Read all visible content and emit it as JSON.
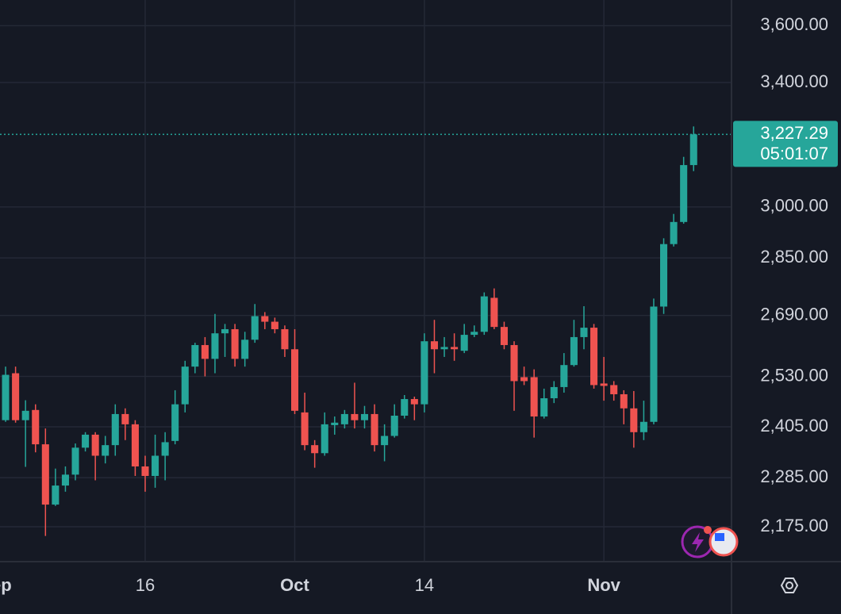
{
  "chart_data": {
    "type": "candlestick",
    "log_scale": true,
    "grid": true,
    "up_color": "#26a69a",
    "down_color": "#ef5350",
    "xlim": [
      -0.56,
      72.8
    ],
    "xticks": [
      {
        "value": -1,
        "label": "Sep"
      },
      {
        "value": 14,
        "label": "16"
      },
      {
        "value": 29,
        "label": "Oct"
      },
      {
        "value": 42,
        "label": "14"
      },
      {
        "value": 60,
        "label": "Nov"
      }
    ],
    "ylim": [
      2100,
      3694
    ],
    "yticks": [
      {
        "value": 2175,
        "label": "2,175.00"
      },
      {
        "value": 2285,
        "label": "2,285.00"
      },
      {
        "value": 2405,
        "label": "2,405.00"
      },
      {
        "value": 2530,
        "label": "2,530.00"
      },
      {
        "value": 2690,
        "label": "2,690.00"
      },
      {
        "value": 2850,
        "label": "2,850.00"
      },
      {
        "value": 3000,
        "label": "3,000.00"
      },
      {
        "value": 3400,
        "label": "3,400.00"
      },
      {
        "value": 3600,
        "label": "3,600.00"
      }
    ],
    "open": [
      2421,
      2538,
      2421,
      2446,
      2363,
      2224,
      2267,
      2292,
      2355,
      2386,
      2336,
      2361,
      2436,
      2411,
      2311,
      2289,
      2336,
      2371,
      2460,
      2555,
      2611,
      2575,
      2642,
      2653,
      2575,
      2625,
      2688,
      2673,
      2653,
      2600,
      2440,
      2361,
      2342,
      2409,
      2411,
      2436,
      2421,
      2436,
      2361,
      2383,
      2432,
      2473,
      2460,
      2621,
      2600,
      2606,
      2596,
      2638,
      2646,
      2738,
      2659,
      2611,
      2528,
      2528,
      2430,
      2475,
      2503,
      2559,
      2632,
      2657,
      2512,
      2508,
      2485,
      2450,
      2392,
      2417,
      2714,
      2890,
      2955,
      3129
    ],
    "high": [
      2555,
      2555,
      2470,
      2460,
      2401,
      2306,
      2311,
      2365,
      2392,
      2392,
      2383,
      2460,
      2450,
      2421,
      2336,
      2386,
      2392,
      2495,
      2570,
      2617,
      2632,
      2694,
      2667,
      2667,
      2646,
      2721,
      2699,
      2684,
      2663,
      2653,
      2489,
      2373,
      2440,
      2430,
      2446,
      2514,
      2456,
      2460,
      2411,
      2460,
      2483,
      2479,
      2642,
      2678,
      2632,
      2642,
      2667,
      2663,
      2753,
      2764,
      2673,
      2621,
      2555,
      2548,
      2499,
      2518,
      2590,
      2678,
      2715,
      2667,
      2580,
      2518,
      2495,
      2493,
      2469,
      2736,
      2907,
      2979,
      3155,
      3253
    ],
    "low": [
      2417,
      2415,
      2310,
      2344,
      2155,
      2221,
      2253,
      2279,
      2346,
      2279,
      2318,
      2336,
      2373,
      2289,
      2253,
      2262,
      2279,
      2363,
      2440,
      2538,
      2530,
      2538,
      2580,
      2555,
      2555,
      2617,
      2653,
      2642,
      2580,
      2436,
      2349,
      2308,
      2336,
      2386,
      2401,
      2401,
      2401,
      2346,
      2323,
      2379,
      2425,
      2421,
      2440,
      2538,
      2580,
      2570,
      2590,
      2632,
      2638,
      2653,
      2600,
      2444,
      2508,
      2379,
      2425,
      2463,
      2489,
      2555,
      2600,
      2499,
      2469,
      2469,
      2411,
      2355,
      2373,
      2411,
      2694,
      2883,
      2950,
      3110
    ],
    "close": [
      2534,
      2421,
      2444,
      2363,
      2224,
      2267,
      2292,
      2355,
      2386,
      2336,
      2361,
      2436,
      2411,
      2311,
      2289,
      2336,
      2368,
      2460,
      2555,
      2611,
      2575,
      2642,
      2653,
      2575,
      2625,
      2688,
      2673,
      2653,
      2600,
      2444,
      2361,
      2342,
      2411,
      2415,
      2436,
      2421,
      2436,
      2361,
      2383,
      2432,
      2473,
      2460,
      2621,
      2600,
      2606,
      2600,
      2638,
      2646,
      2742,
      2659,
      2611,
      2518,
      2518,
      2430,
      2475,
      2503,
      2559,
      2632,
      2657,
      2508,
      2506,
      2485,
      2450,
      2392,
      2417,
      2714,
      2890,
      2955,
      3129,
      3227.29
    ],
    "last_price": {
      "value": 3227.29,
      "label": "3,227.29"
    },
    "countdown": "05:01:07"
  }
}
